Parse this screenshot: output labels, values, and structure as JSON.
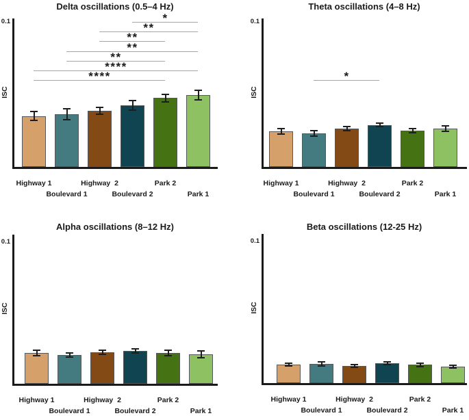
{
  "style": {
    "bar_colors": [
      "#D5A069",
      "#447B81",
      "#834A15",
      "#0F4450",
      "#457313",
      "#8EC162"
    ],
    "bar_border_color": "#55565a",
    "axis_color": "#1a1a1a",
    "error_bar_color": "#1d1d1d",
    "sig_line_color": "#a6a6a6",
    "text_color": "#1a1a1a",
    "background": "#ffffff"
  },
  "chart_data": [
    {
      "type": "bar",
      "title": "Delta oscillations (0.5–4 Hz)",
      "ylabel": "ISC",
      "ytick_label": "0.1",
      "ylim": [
        0,
        0.1
      ],
      "grid": false,
      "categories": [
        "Highway 1",
        "Boulevard 1",
        "Highway  2",
        "Boulevard 2",
        "Park 2",
        "Park 1"
      ],
      "values": [
        0.035,
        0.0365,
        0.0385,
        0.0425,
        0.0475,
        0.0495
      ],
      "errors": [
        0.003,
        0.0038,
        0.0024,
        0.0033,
        0.0026,
        0.0031
      ],
      "significance": [
        {
          "a": 3,
          "b": 5,
          "a_name": "Boulevard 2",
          "b_name": "Park 1",
          "label": "*",
          "row": 0
        },
        {
          "a": 2,
          "b": 5,
          "a_name": "Highway  2",
          "b_name": "Park 1",
          "label": "**",
          "row": 1
        },
        {
          "a": 2,
          "b": 4,
          "a_name": "Highway  2",
          "b_name": "Park 2",
          "label": "**",
          "row": 2
        },
        {
          "a": 1,
          "b": 5,
          "a_name": "Boulevard 1",
          "b_name": "Park 1",
          "label": "**",
          "row": 3
        },
        {
          "a": 1,
          "b": 4,
          "a_name": "Boulevard 1",
          "b_name": "Park 2",
          "label": "**",
          "row": 4
        },
        {
          "a": 0,
          "b": 5,
          "a_name": "Highway 1",
          "b_name": "Park 1",
          "label": "****",
          "row": 5
        },
        {
          "a": 0,
          "b": 4,
          "a_name": "Highway 1",
          "b_name": "Park 2",
          "label": "****",
          "row": 6
        }
      ]
    },
    {
      "type": "bar",
      "title": "Theta oscillations (4–8 Hz)",
      "ylabel": "ISC",
      "ytick_label": "0.1",
      "ylim": [
        0,
        0.1
      ],
      "grid": false,
      "categories": [
        "Highway 1",
        "Boulevard 1",
        "Highway  2",
        "Boulevard 2",
        "Park 2",
        "Park 1"
      ],
      "values": [
        0.0245,
        0.023,
        0.0265,
        0.029,
        0.025,
        0.0265
      ],
      "errors": [
        0.002,
        0.002,
        0.0015,
        0.0013,
        0.0014,
        0.0019
      ],
      "significance": [
        {
          "a": 1,
          "b": 3,
          "a_name": "Boulevard 1",
          "b_name": "Boulevard 2",
          "label": "*",
          "row": 6
        }
      ]
    },
    {
      "type": "bar",
      "title": "Alpha oscillations (8–12 Hz)",
      "ylabel": "ISC",
      "ytick_label": "0.1",
      "ylim": [
        0,
        0.1
      ],
      "grid": false,
      "categories": [
        "Highway 1",
        "Boulevard 1",
        "Highway  2",
        "Boulevard 2",
        "Park 2",
        "Park 1"
      ],
      "values": [
        0.0217,
        0.0203,
        0.0222,
        0.0232,
        0.0217,
        0.0208
      ],
      "errors": [
        0.0019,
        0.0015,
        0.0015,
        0.0015,
        0.0019,
        0.0024
      ],
      "significance": []
    },
    {
      "type": "bar",
      "title": "Beta oscillations (12-25 Hz)",
      "ylabel": "ISC",
      "ytick_label": "0.1",
      "ylim": [
        0,
        0.1
      ],
      "grid": false,
      "categories": [
        "Highway 1",
        "Boulevard 1",
        "Highway  2",
        "Boulevard 2",
        "Park 2",
        "Park 1"
      ],
      "values": [
        0.013,
        0.0135,
        0.012,
        0.014,
        0.013,
        0.0115
      ],
      "errors": [
        0.001,
        0.0014,
        0.001,
        0.001,
        0.0012,
        0.001
      ],
      "significance": []
    }
  ]
}
